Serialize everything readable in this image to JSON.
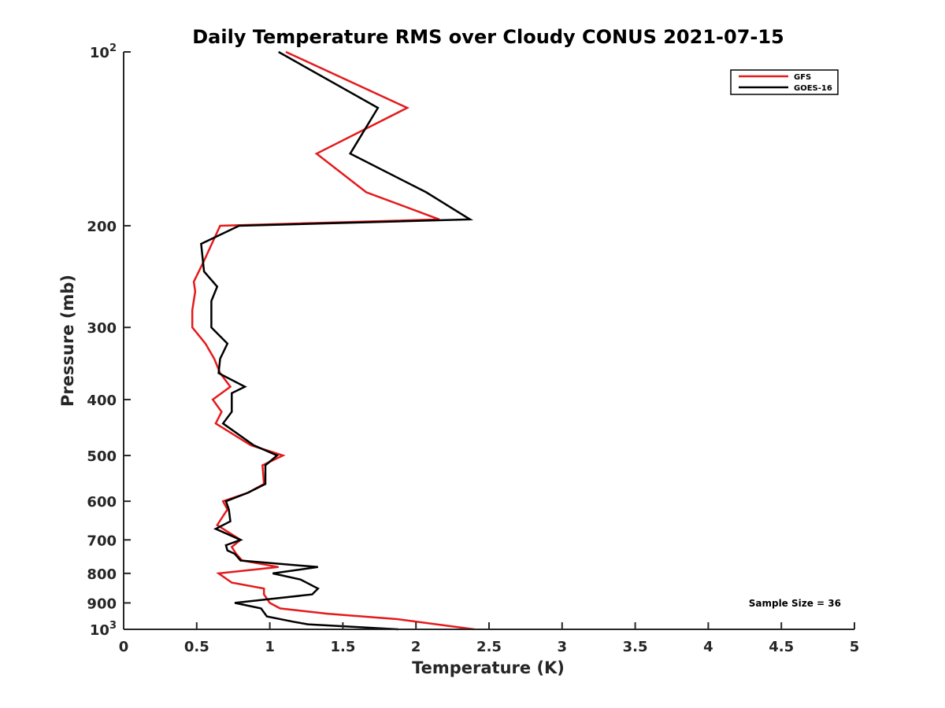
{
  "chart_data": {
    "type": "line",
    "title": "Daily Temperature RMS over Cloudy CONUS 2021-07-15",
    "xlabel": "Temperature (K)",
    "ylabel": "Pressure (mb)",
    "xlim": [
      0,
      5
    ],
    "ylim": [
      100,
      1000
    ],
    "y_scale": "log",
    "y_reversed": true,
    "grid": false,
    "legend_position": "top-right",
    "x_ticks": [
      0,
      0.5,
      1,
      1.5,
      2,
      2.5,
      3,
      3.5,
      4,
      4.5,
      5
    ],
    "x_tick_labels": [
      "0",
      "0.5",
      "1",
      "1.5",
      "2",
      "2.5",
      "3",
      "3.5",
      "4",
      "4.5",
      "5"
    ],
    "y_ticks": [
      100,
      200,
      300,
      400,
      500,
      600,
      700,
      800,
      900,
      1000
    ],
    "y_tick_labels": [
      {
        "base": "10",
        "exp": "2"
      },
      {
        "base": "200",
        "exp": ""
      },
      {
        "base": "300",
        "exp": ""
      },
      {
        "base": "400",
        "exp": ""
      },
      {
        "base": "500",
        "exp": ""
      },
      {
        "base": "600",
        "exp": ""
      },
      {
        "base": "700",
        "exp": ""
      },
      {
        "base": "800",
        "exp": ""
      },
      {
        "base": "900",
        "exp": ""
      },
      {
        "base": "10",
        "exp": "3"
      }
    ],
    "series": [
      {
        "name": "GFS",
        "color": "#e41a1c",
        "points": [
          [
            1.11,
            100
          ],
          [
            1.94,
            125
          ],
          [
            1.32,
            150
          ],
          [
            1.66,
            175
          ],
          [
            2.16,
            195
          ],
          [
            0.66,
            200
          ],
          [
            0.55,
            230
          ],
          [
            0.48,
            250
          ],
          [
            0.49,
            260
          ],
          [
            0.47,
            280
          ],
          [
            0.47,
            300
          ],
          [
            0.56,
            320
          ],
          [
            0.62,
            340
          ],
          [
            0.66,
            360
          ],
          [
            0.73,
            380
          ],
          [
            0.61,
            400
          ],
          [
            0.67,
            420
          ],
          [
            0.63,
            440
          ],
          [
            0.87,
            480
          ],
          [
            1.09,
            500
          ],
          [
            0.95,
            520
          ],
          [
            0.96,
            560
          ],
          [
            0.85,
            580
          ],
          [
            0.68,
            600
          ],
          [
            0.71,
            620
          ],
          [
            0.64,
            660
          ],
          [
            0.8,
            700
          ],
          [
            0.74,
            720
          ],
          [
            0.77,
            740
          ],
          [
            0.81,
            760
          ],
          [
            1.06,
            780
          ],
          [
            0.65,
            800
          ],
          [
            0.74,
            830
          ],
          [
            0.96,
            850
          ],
          [
            0.96,
            870
          ],
          [
            1.0,
            900
          ],
          [
            1.07,
            920
          ],
          [
            1.4,
            940
          ],
          [
            1.87,
            960
          ],
          [
            2.4,
            1000
          ]
        ]
      },
      {
        "name": "GOES-16",
        "color": "#000000",
        "points": [
          [
            1.06,
            100
          ],
          [
            1.74,
            125
          ],
          [
            1.55,
            150
          ],
          [
            2.07,
            175
          ],
          [
            2.37,
            195
          ],
          [
            0.79,
            200
          ],
          [
            0.53,
            215
          ],
          [
            0.55,
            240
          ],
          [
            0.64,
            255
          ],
          [
            0.6,
            270
          ],
          [
            0.6,
            300
          ],
          [
            0.71,
            320
          ],
          [
            0.66,
            340
          ],
          [
            0.65,
            360
          ],
          [
            0.83,
            380
          ],
          [
            0.74,
            390
          ],
          [
            0.74,
            420
          ],
          [
            0.68,
            440
          ],
          [
            0.89,
            480
          ],
          [
            1.05,
            500
          ],
          [
            0.97,
            520
          ],
          [
            0.97,
            560
          ],
          [
            0.85,
            580
          ],
          [
            0.7,
            600
          ],
          [
            0.72,
            620
          ],
          [
            0.73,
            650
          ],
          [
            0.63,
            670
          ],
          [
            0.8,
            700
          ],
          [
            0.7,
            715
          ],
          [
            0.71,
            730
          ],
          [
            0.76,
            740
          ],
          [
            0.8,
            760
          ],
          [
            1.33,
            780
          ],
          [
            1.02,
            800
          ],
          [
            1.21,
            820
          ],
          [
            1.33,
            850
          ],
          [
            1.29,
            870
          ],
          [
            0.76,
            900
          ],
          [
            0.94,
            920
          ],
          [
            0.98,
            950
          ],
          [
            1.16,
            970
          ],
          [
            1.26,
            980
          ],
          [
            1.88,
            1000
          ]
        ]
      }
    ],
    "annotation": "Sample Size = 36"
  }
}
